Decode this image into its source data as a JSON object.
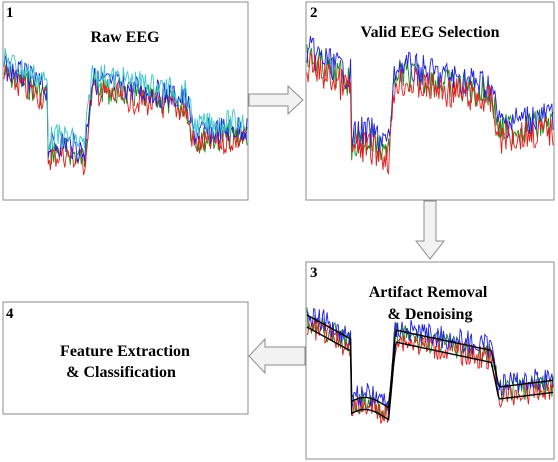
{
  "panels": [
    {
      "number": "1",
      "title_lines": [
        "Raw EEG"
      ]
    },
    {
      "number": "2",
      "title_lines": [
        "Valid EEG Selection"
      ]
    },
    {
      "number": "3",
      "title_lines": [
        "Artifact Removal",
        "& Denoising"
      ]
    },
    {
      "number": "4",
      "title_lines": [
        "Feature Extraction",
        "& Classification"
      ]
    }
  ],
  "colors": {
    "border": "#8c8c8c",
    "arrow_fill": "#f2f2f2",
    "arrow_stroke": "#8c8c8c",
    "signal_blue": "#1f1fe0",
    "signal_green": "#1a8a1a",
    "signal_red": "#e81c1c",
    "signal_cyan": "#3cc8c8",
    "signal_smooth": "#000000"
  }
}
